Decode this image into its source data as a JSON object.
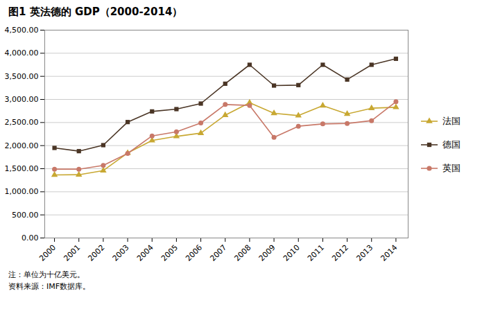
{
  "chart_data": {
    "type": "line",
    "title": "图1  英法德的 GDP（2000-2014）",
    "annotations": [
      "注：单位为十亿美元。",
      "资料来源：IMF数据库。"
    ],
    "x": [
      2000,
      2001,
      2002,
      2003,
      2004,
      2005,
      2006,
      2007,
      2008,
      2009,
      2010,
      2011,
      2012,
      2013,
      2014
    ],
    "series": [
      {
        "name": "法国",
        "color": "#c8a832",
        "marker": "triangle",
        "values": [
          1365,
          1370,
          1460,
          1840,
          2110,
          2200,
          2270,
          2660,
          2930,
          2700,
          2650,
          2865,
          2685,
          2810,
          2830
        ]
      },
      {
        "name": "德国",
        "color": "#4a3525",
        "marker": "square",
        "values": [
          1950,
          1880,
          2010,
          2510,
          2740,
          2790,
          2910,
          3340,
          3750,
          3300,
          3310,
          3750,
          3430,
          3750,
          3880
        ]
      },
      {
        "name": "英国",
        "color": "#c87868",
        "marker": "circle",
        "values": [
          1490,
          1490,
          1570,
          1830,
          2210,
          2300,
          2490,
          2890,
          2870,
          2180,
          2420,
          2470,
          2480,
          2540,
          2950
        ]
      }
    ],
    "xlim": [
      1999.6,
      2014.5
    ],
    "xticks": [
      2000,
      2001,
      2002,
      2003,
      2004,
      2005,
      2006,
      2007,
      2008,
      2009,
      2010,
      2011,
      2012,
      2013,
      2014
    ],
    "ylim": [
      0,
      4500
    ],
    "yticks": [
      {
        "value": 0,
        "label": "0.00"
      },
      {
        "value": 500,
        "label": "500.00"
      },
      {
        "value": 1000,
        "label": "1,000.00"
      },
      {
        "value": 1500,
        "label": "1,500.00"
      },
      {
        "value": 2000,
        "label": "2,000.00"
      },
      {
        "value": 2500,
        "label": "2,500.00"
      },
      {
        "value": 3000,
        "label": "3,000.00"
      },
      {
        "value": 3500,
        "label": "3,500.00"
      },
      {
        "value": 4000,
        "label": "4,000.00"
      },
      {
        "value": 4500,
        "label": "4,500.00"
      }
    ],
    "grid": true,
    "legend": "right"
  }
}
